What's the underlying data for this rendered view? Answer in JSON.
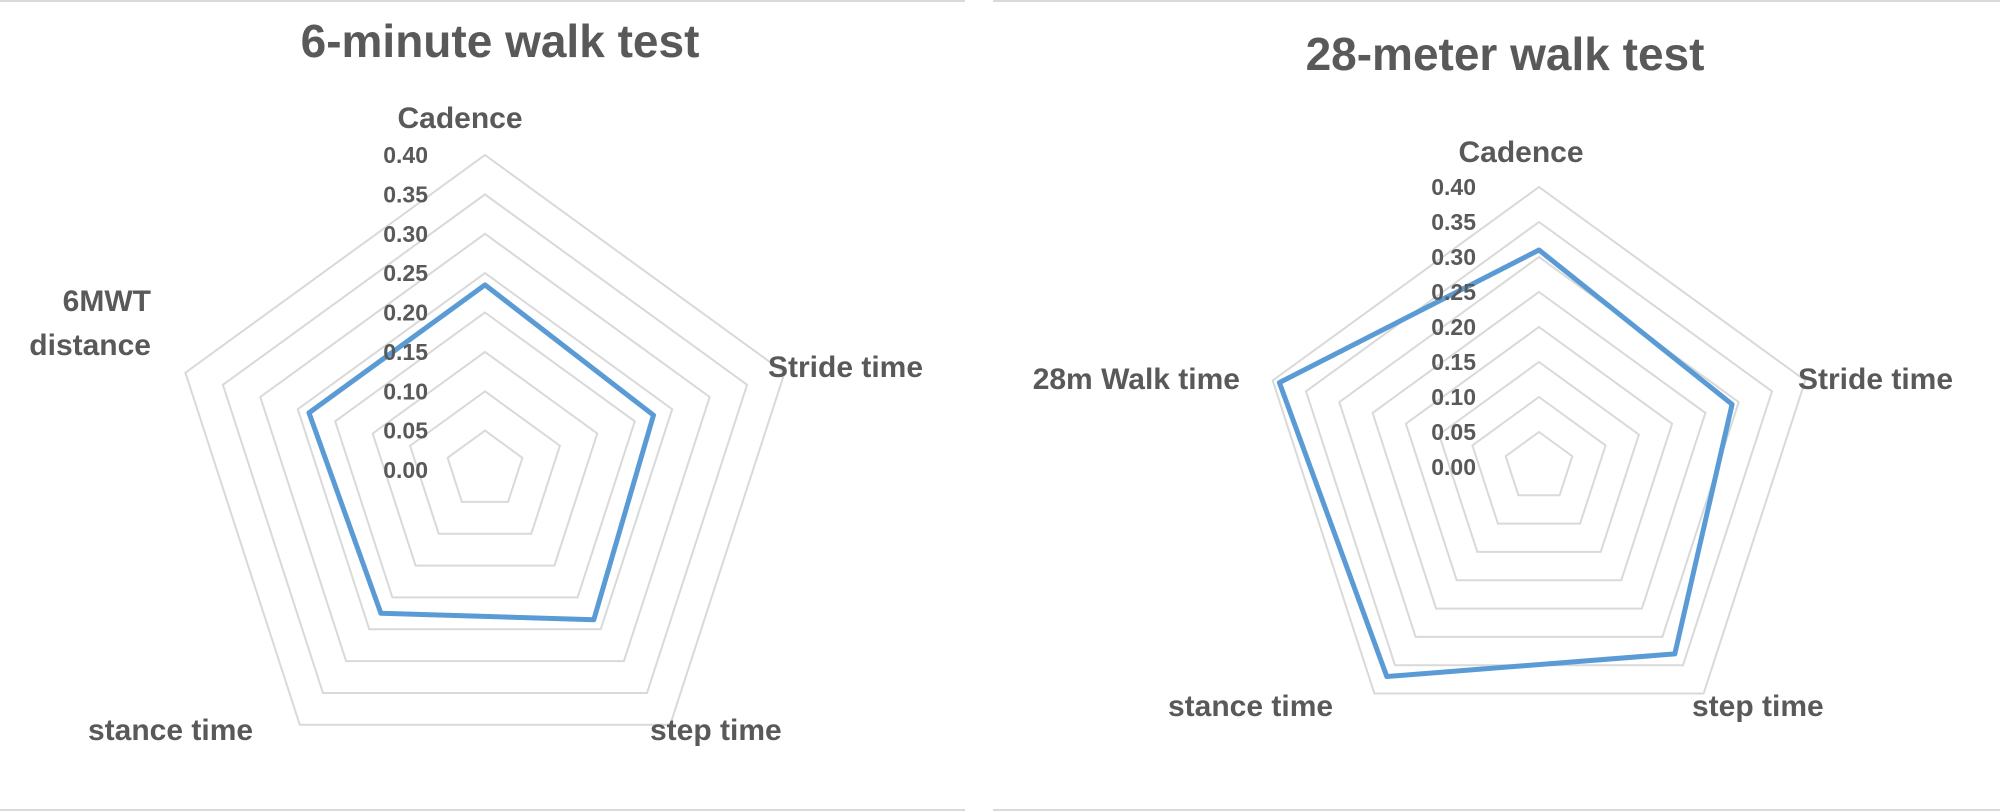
{
  "colors": {
    "series": "#5b9bd5",
    "grid": "#d9d9d9",
    "text": "#595959"
  },
  "chart_data": [
    {
      "type": "radar",
      "title": "6-minute walk test",
      "categories": [
        "Cadence",
        "Stride time",
        "step time",
        "stance time",
        "6MWT distance"
      ],
      "category_label_lines": [
        [
          "Cadence"
        ],
        [
          "Stride time"
        ],
        [
          "step time"
        ],
        [
          "stance time"
        ],
        [
          "6MWT",
          "distance"
        ]
      ],
      "ticks": [
        "0.00",
        "0.05",
        "0.10",
        "0.15",
        "0.20",
        "0.25",
        "0.30",
        "0.35",
        "0.40"
      ],
      "rlim": [
        0,
        0.4
      ],
      "grid": true,
      "legend": "none",
      "series": [
        {
          "values": [
            0.235,
            0.225,
            0.235,
            0.225,
            0.235
          ]
        }
      ]
    },
    {
      "type": "radar",
      "title": "28-meter walk test",
      "categories": [
        "Cadence",
        "Stride time",
        "step time",
        "stance time",
        "28m Walk time"
      ],
      "category_label_lines": [
        [
          "Cadence"
        ],
        [
          "Stride time"
        ],
        [
          "step time"
        ],
        [
          "stance time"
        ],
        [
          "28m Walk time"
        ]
      ],
      "ticks": [
        "0.00",
        "0.05",
        "0.10",
        "0.15",
        "0.20",
        "0.25",
        "0.30",
        "0.35",
        "0.40"
      ],
      "rlim": [
        0,
        0.4
      ],
      "grid": true,
      "legend": "none",
      "series": [
        {
          "values": [
            0.31,
            0.29,
            0.33,
            0.37,
            0.39
          ]
        }
      ]
    }
  ]
}
